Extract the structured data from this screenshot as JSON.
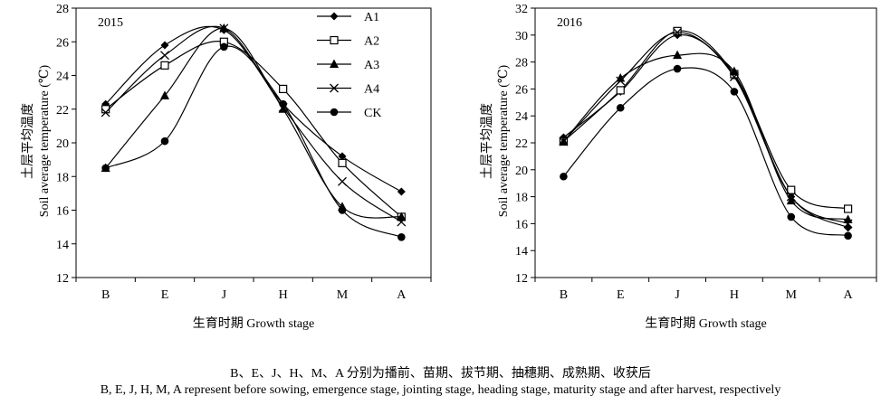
{
  "chart_data": [
    {
      "type": "line",
      "title": "2015",
      "xlabel": "生育时期 Growth stage",
      "ylabel_zh": "土层平均温度",
      "ylabel_en": "Soil average temperature (℃)",
      "categories": [
        "B",
        "E",
        "J",
        "H",
        "M",
        "A"
      ],
      "ylim": [
        12,
        28
      ],
      "yticks": [
        12,
        14,
        16,
        18,
        20,
        22,
        24,
        26,
        28
      ],
      "grid": false,
      "legend": "top-right",
      "series": [
        {
          "name": "A1",
          "marker": "diamond",
          "values": [
            22.3,
            25.8,
            26.7,
            22.3,
            19.2,
            17.1
          ]
        },
        {
          "name": "A2",
          "marker": "square-open",
          "values": [
            22.0,
            24.6,
            26.0,
            23.2,
            18.8,
            15.6
          ]
        },
        {
          "name": "A3",
          "marker": "triangle",
          "values": [
            18.5,
            22.8,
            26.8,
            22.0,
            16.2,
            15.6
          ]
        },
        {
          "name": "A4",
          "marker": "x",
          "values": [
            21.8,
            25.2,
            26.8,
            22.1,
            17.7,
            15.3
          ]
        },
        {
          "name": "CK",
          "marker": "circle",
          "values": [
            18.5,
            20.1,
            25.7,
            22.3,
            16.0,
            14.4
          ]
        }
      ]
    },
    {
      "type": "line",
      "title": "2016",
      "xlabel": "生育时期 Growth stage",
      "ylabel_zh": "土层平均温度",
      "ylabel_en": "Soil average temperature (℃)",
      "categories": [
        "B",
        "E",
        "J",
        "H",
        "M",
        "A"
      ],
      "ylim": [
        12,
        32
      ],
      "yticks": [
        12,
        14,
        16,
        18,
        20,
        22,
        24,
        26,
        28,
        30,
        32
      ],
      "grid": false,
      "series": [
        {
          "name": "A1",
          "marker": "diamond",
          "values": [
            22.4,
            25.8,
            30.0,
            27.0,
            18.0,
            15.7
          ]
        },
        {
          "name": "A2",
          "marker": "square-open",
          "values": [
            22.1,
            25.9,
            30.3,
            27.1,
            18.5,
            17.1
          ]
        },
        {
          "name": "A3",
          "marker": "triangle",
          "values": [
            22.1,
            26.8,
            28.5,
            27.3,
            17.7,
            16.3
          ]
        },
        {
          "name": "A4",
          "marker": "x",
          "values": [
            22.1,
            26.6,
            30.2,
            26.9,
            18.0,
            16.0
          ]
        },
        {
          "name": "CK",
          "marker": "circle",
          "values": [
            19.5,
            24.6,
            27.5,
            25.8,
            16.5,
            15.1
          ]
        }
      ]
    }
  ],
  "caption": {
    "zh": "B、E、J、H、M、A 分别为播前、苗期、拔节期、抽穗期、成熟期、收获后",
    "en": "B, E, J, H, M, A represent before sowing, emergence stage, jointing stage, heading stage, maturity stage and after harvest, respectively"
  }
}
